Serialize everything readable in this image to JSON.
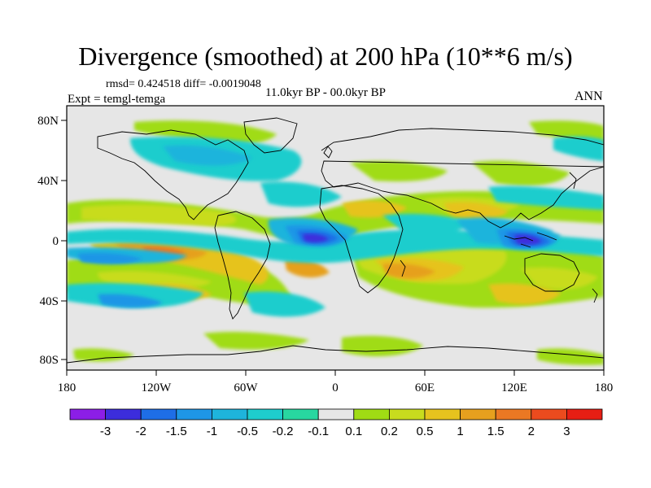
{
  "figure": {
    "title": "Divergence (smoothed) at 200 hPa (10**6 m/s)",
    "stats": "rmsd= 0.424518 diff= -0.0019048",
    "experiment": "Expt = temgl-temga",
    "period": "11.0kyr BP - 00.0kyr BP",
    "season": "ANN"
  },
  "axes": {
    "x_ticks": [
      "180",
      "120W",
      "60W",
      "0",
      "60E",
      "120E",
      "180"
    ],
    "y_ticks": [
      "80N",
      "40N",
      "0",
      "40S",
      "80S"
    ]
  },
  "colorbar": {
    "colors": [
      "#8c1ee6",
      "#3c2ddc",
      "#1e6ee6",
      "#1e96e6",
      "#1eb4dc",
      "#1ecdcd",
      "#28d7a0",
      "#e6e6e6",
      "#a0dc14",
      "#c8dc1e",
      "#e6c31e",
      "#e6a01e",
      "#eb7823",
      "#eb4b1e",
      "#e61e14"
    ],
    "labels": [
      "-3",
      "-2",
      "-1.5",
      "-1",
      "-0.5",
      "-0.2",
      "-0.1",
      "0.1",
      "0.2",
      "0.5",
      "1",
      "1.5",
      "2",
      "3"
    ]
  }
}
